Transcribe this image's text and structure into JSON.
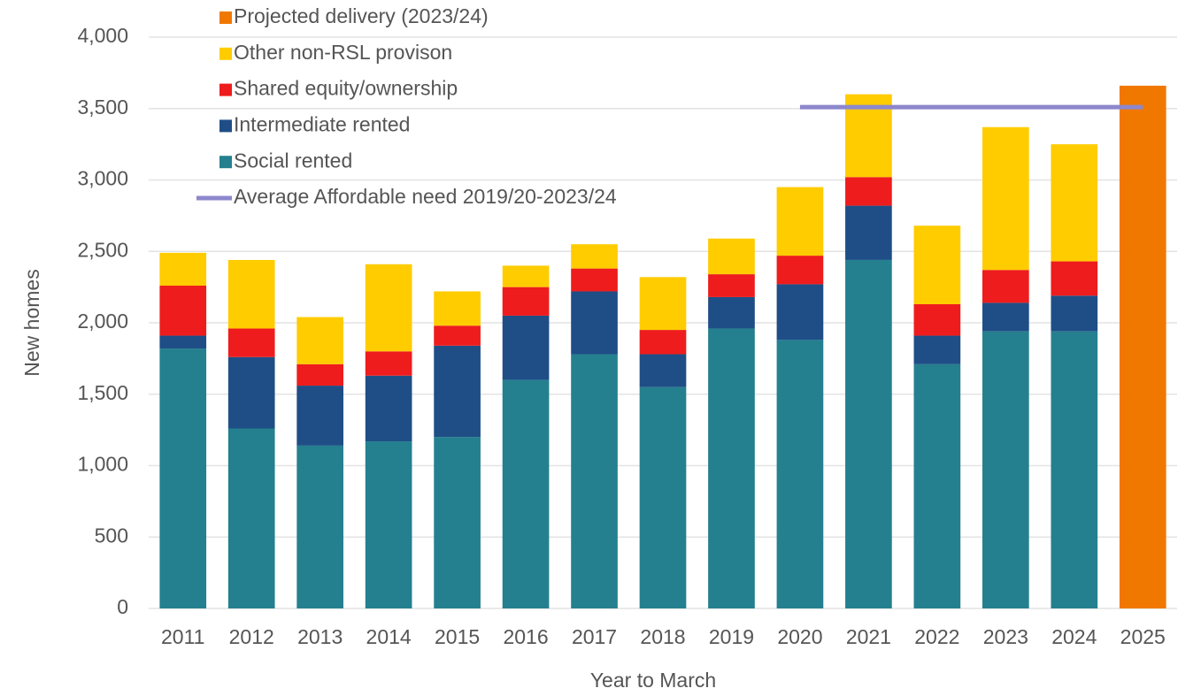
{
  "chart_data": {
    "type": "bar",
    "stacked": true,
    "x_label": "Year to March",
    "y_label": "New homes",
    "categories": [
      "2011",
      "2012",
      "2013",
      "2014",
      "2015",
      "2016",
      "2017",
      "2018",
      "2019",
      "2020",
      "2021",
      "2022",
      "2023",
      "2024",
      "2025"
    ],
    "series": [
      {
        "name": "Social rented",
        "color": "#24808f",
        "values": [
          1820,
          1260,
          1140,
          1170,
          1200,
          1600,
          1780,
          1550,
          1960,
          1880,
          2440,
          1710,
          1940,
          1940,
          null
        ]
      },
      {
        "name": "Intermediate rented",
        "color": "#1f4e86",
        "values": [
          90,
          500,
          420,
          460,
          640,
          450,
          440,
          230,
          220,
          390,
          380,
          200,
          200,
          250,
          null
        ]
      },
      {
        "name": "Shared equity/ownership",
        "color": "#ee1c1c",
        "values": [
          350,
          200,
          150,
          170,
          140,
          200,
          160,
          170,
          160,
          200,
          200,
          220,
          230,
          240,
          null
        ]
      },
      {
        "name": "Other non-RSL provison",
        "color": "#ffcc00",
        "values": [
          230,
          480,
          330,
          610,
          240,
          150,
          170,
          370,
          250,
          480,
          580,
          550,
          1000,
          820,
          null
        ]
      },
      {
        "name": "Projected delivery (2023/24)",
        "color": "#f07800",
        "values": [
          null,
          null,
          null,
          null,
          null,
          null,
          null,
          null,
          null,
          null,
          null,
          null,
          null,
          null,
          3660
        ]
      },
      {
        "name": "Average Affordable need 2019/20-2023/24",
        "type": "line",
        "color": "#8d87cc",
        "values": [
          null,
          null,
          null,
          null,
          null,
          null,
          null,
          null,
          null,
          3510,
          3510,
          3510,
          3510,
          3510,
          3510
        ]
      }
    ],
    "ylim": [
      0,
      4000
    ],
    "yticks": [
      0,
      500,
      {
        "value": 1000,
        "label": "1,000"
      },
      {
        "value": 1500,
        "label": "1,500"
      },
      {
        "value": 2000,
        "label": "2,000"
      },
      {
        "value": 2500,
        "label": "2,500"
      },
      {
        "value": 3000,
        "label": "3,000"
      },
      {
        "value": 3500,
        "label": "3,500"
      },
      {
        "value": 4000,
        "label": "4,000"
      }
    ],
    "grid": true,
    "legend": "top-left"
  }
}
